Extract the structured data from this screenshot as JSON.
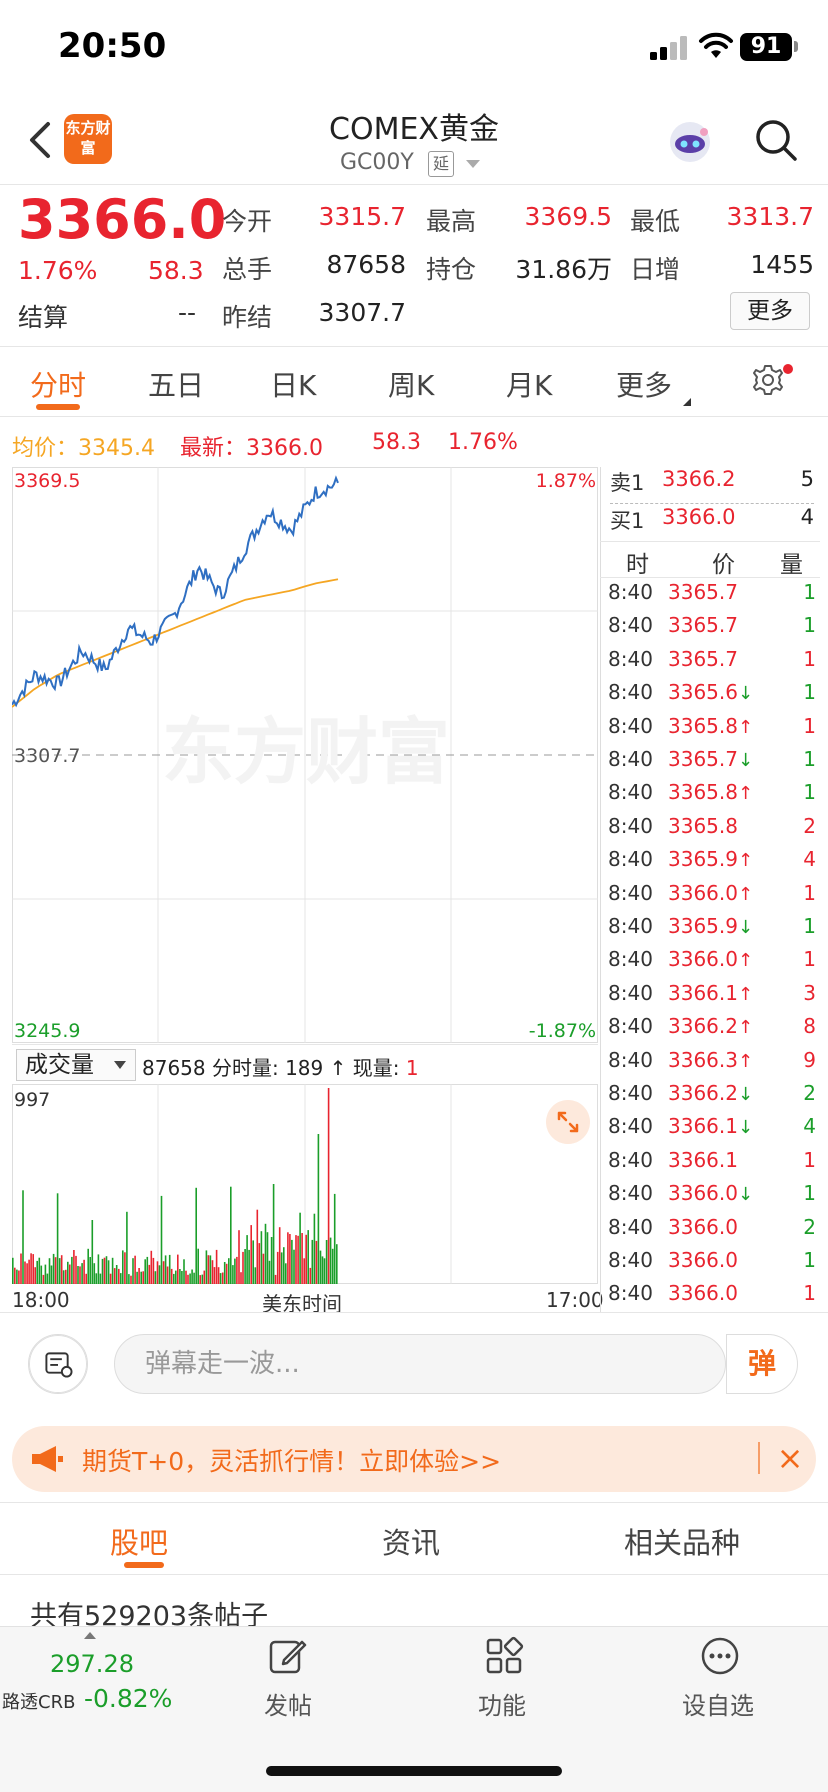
{
  "status_bar": {
    "time": "20:50",
    "battery": "91"
  },
  "nav": {
    "logo": "东方财富",
    "title": "COMEX黄金",
    "code": "GC00Y",
    "delay_badge": "延"
  },
  "quote": {
    "price": "3366.0",
    "change_pct": "1.76%",
    "change": "58.3",
    "settle_label": "结算",
    "settle_value": "--",
    "fields": [
      {
        "label": "今开",
        "value": "3315.7",
        "color": "#e8242f"
      },
      {
        "label": "最高",
        "value": "3369.5",
        "color": "#e8242f"
      },
      {
        "label": "最低",
        "value": "3313.7",
        "color": "#e8242f"
      },
      {
        "label": "总手",
        "value": "87658",
        "color": "#222222"
      },
      {
        "label": "持仓",
        "value": "31.86万",
        "color": "#222222"
      },
      {
        "label": "日增",
        "value": "1455",
        "color": "#222222"
      },
      {
        "label": "昨结",
        "value": "3307.7",
        "color": "#222222"
      }
    ],
    "more_button": "更多"
  },
  "tabs": {
    "items": [
      "分时",
      "五日",
      "日K",
      "周K",
      "月K",
      "更多"
    ],
    "active": "分时"
  },
  "summary": {
    "avg_label": "均价：3345.4",
    "new_label": "最新：3366.0",
    "change": "58.3",
    "change_pct": "1.76%"
  },
  "chart_data": {
    "type": "line",
    "title": "",
    "y_max_label": "3369.5",
    "y_mid_label": "3307.7",
    "y_min_label": "3245.9",
    "pct_max_label": "1.87%",
    "pct_min_label": "-1.87%",
    "ylim": [
      3245.9,
      3369.5
    ],
    "reference": 3307.7,
    "x_start_label": "18:00",
    "x_mid_label": "美东时间",
    "x_end_label": "17:00",
    "watermark": "东方财富",
    "series": [
      {
        "color": "#2f6fc2",
        "values": [
          3318.5,
          3325,
          3323,
          3330,
          3326,
          3335,
          3332,
          3338,
          3348,
          3342,
          3352,
          3360,
          3356,
          3364,
          3366
        ]
      },
      {
        "color": "#f5a623",
        "values": [
          3318,
          3322,
          3325,
          3327,
          3329,
          3331,
          3333,
          3335,
          3337,
          3339,
          3341,
          3342,
          3343,
          3344.5,
          3345.4
        ]
      }
    ],
    "line_colors": {
      "price": "#2f6fc2",
      "avg": "#f5a623"
    }
  },
  "volume": {
    "selector": "成交量",
    "info_total": "87658",
    "info_text": "分时量: 189 ↑ 现量: ",
    "info_now": "1",
    "y_max_label": "997",
    "ymax": 997
  },
  "orderbook": {
    "sell": {
      "label": "卖1",
      "price": "3366.2",
      "vol": "5"
    },
    "buy": {
      "label": "买1",
      "price": "3366.0",
      "vol": "4"
    }
  },
  "ticks_header": {
    "time": "时",
    "price": "价",
    "vol": "量"
  },
  "ticks": [
    {
      "t": "8:40",
      "p": "3365.7",
      "a": "",
      "v": "1",
      "c": "#1b9e2a"
    },
    {
      "t": "8:40",
      "p": "3365.7",
      "a": "",
      "v": "1",
      "c": "#1b9e2a"
    },
    {
      "t": "8:40",
      "p": "3365.7",
      "a": "",
      "v": "1",
      "c": "#e8242f"
    },
    {
      "t": "8:40",
      "p": "3365.6",
      "a": "↓",
      "v": "1",
      "c": "#1b9e2a"
    },
    {
      "t": "8:40",
      "p": "3365.8",
      "a": "↑",
      "v": "1",
      "c": "#e8242f"
    },
    {
      "t": "8:40",
      "p": "3365.7",
      "a": "↓",
      "v": "1",
      "c": "#1b9e2a"
    },
    {
      "t": "8:40",
      "p": "3365.8",
      "a": "↑",
      "v": "1",
      "c": "#1b9e2a"
    },
    {
      "t": "8:40",
      "p": "3365.8",
      "a": "",
      "v": "2",
      "c": "#e8242f"
    },
    {
      "t": "8:40",
      "p": "3365.9",
      "a": "↑",
      "v": "4",
      "c": "#e8242f"
    },
    {
      "t": "8:40",
      "p": "3366.0",
      "a": "↑",
      "v": "1",
      "c": "#e8242f"
    },
    {
      "t": "8:40",
      "p": "3365.9",
      "a": "↓",
      "v": "1",
      "c": "#1b9e2a"
    },
    {
      "t": "8:40",
      "p": "3366.0",
      "a": "↑",
      "v": "1",
      "c": "#e8242f"
    },
    {
      "t": "8:40",
      "p": "3366.1",
      "a": "↑",
      "v": "3",
      "c": "#e8242f"
    },
    {
      "t": "8:40",
      "p": "3366.2",
      "a": "↑",
      "v": "8",
      "c": "#e8242f"
    },
    {
      "t": "8:40",
      "p": "3366.3",
      "a": "↑",
      "v": "9",
      "c": "#e8242f"
    },
    {
      "t": "8:40",
      "p": "3366.2",
      "a": "↓",
      "v": "2",
      "c": "#1b9e2a"
    },
    {
      "t": "8:40",
      "p": "3366.1",
      "a": "↓",
      "v": "4",
      "c": "#1b9e2a"
    },
    {
      "t": "8:40",
      "p": "3366.1",
      "a": "",
      "v": "1",
      "c": "#e8242f"
    },
    {
      "t": "8:40",
      "p": "3366.0",
      "a": "↓",
      "v": "1",
      "c": "#1b9e2a"
    },
    {
      "t": "8:40",
      "p": "3366.0",
      "a": "",
      "v": "2",
      "c": "#1b9e2a"
    },
    {
      "t": "8:40",
      "p": "3366.0",
      "a": "",
      "v": "1",
      "c": "#1b9e2a"
    },
    {
      "t": "8:40",
      "p": "3366.0",
      "a": "",
      "v": "1",
      "c": "#e8242f"
    }
  ],
  "danmaku": {
    "placeholder": "弹幕走一波...",
    "button": "弹"
  },
  "promo": {
    "text": "期货T+0，灵活抓行情！立即体验>>"
  },
  "bottom_tabs": {
    "items": [
      "股吧",
      "资讯",
      "相关品种"
    ],
    "active": "股吧"
  },
  "posts_count": "共有529203条帖子",
  "tabbar": {
    "crb_value": "297.28",
    "crb_name": "路透CRB",
    "crb_pct": "-0.82%",
    "items": [
      "发帖",
      "功能",
      "设自选"
    ]
  },
  "colors": {
    "accent": "#f26a1b",
    "up": "#e8242f",
    "down": "#1b9e2a",
    "avg_line": "#f5a623",
    "price_line": "#2f6fc2"
  }
}
